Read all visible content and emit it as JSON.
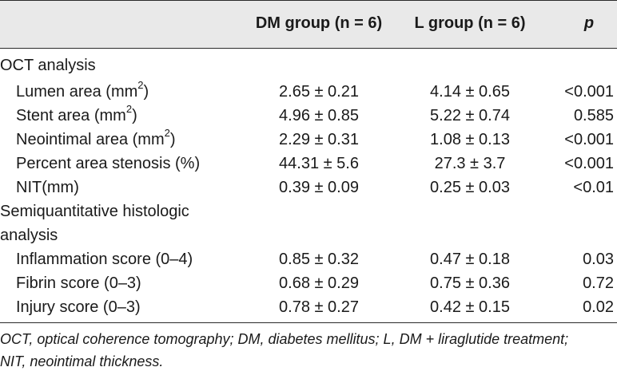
{
  "header": {
    "col_label": "",
    "col_dm": "DM group (n = 6)",
    "col_l": "L group (n = 6)",
    "col_p": "p"
  },
  "sections": [
    {
      "title": "OCT analysis",
      "rows": [
        {
          "label": "Lumen area (mm",
          "sup": "2",
          "after": ")",
          "dm": "2.65 ± 0.21",
          "l": "4.14 ± 0.65",
          "p": "<0.001"
        },
        {
          "label": "Stent area (mm",
          "sup": "2",
          "after": ")",
          "dm": "4.96 ± 0.85",
          "l": "5.22 ± 0.74",
          "p": "0.585"
        },
        {
          "label": "Neointimal area (mm",
          "sup": "2",
          "after": ")",
          "dm": "2.29 ± 0.31",
          "l": "1.08 ± 0.13",
          "p": "<0.001"
        },
        {
          "label": "Percent area stenosis (%)",
          "dm": "44.31 ± 5.6",
          "l": "27.3 ± 3.7",
          "p": "<0.001"
        },
        {
          "label": "NIT(mm)",
          "dm": "0.39 ± 0.09",
          "l": "0.25 ± 0.03",
          "p": "<0.01"
        }
      ]
    },
    {
      "title_line1": "Semiquantitative histologic",
      "title_line2": "analysis",
      "rows": [
        {
          "label": "Inflammation score (0–4)",
          "dm": "0.85 ± 0.32",
          "l": "0.47 ± 0.18",
          "p": "0.03"
        },
        {
          "label": "Fibrin score (0–3)",
          "dm": "0.68 ± 0.29",
          "l": "0.75 ± 0.36",
          "p": "0.72"
        },
        {
          "label": "Injury score (0–3)",
          "dm": "0.78 ± 0.27",
          "l": "0.42 ± 0.15",
          "p": "0.02"
        }
      ]
    }
  ],
  "footnote": {
    "line1": "OCT, optical coherence tomography; DM, diabetes mellitus; L, DM + liraglutide treatment;",
    "line2": "NIT, neointimal thickness."
  }
}
